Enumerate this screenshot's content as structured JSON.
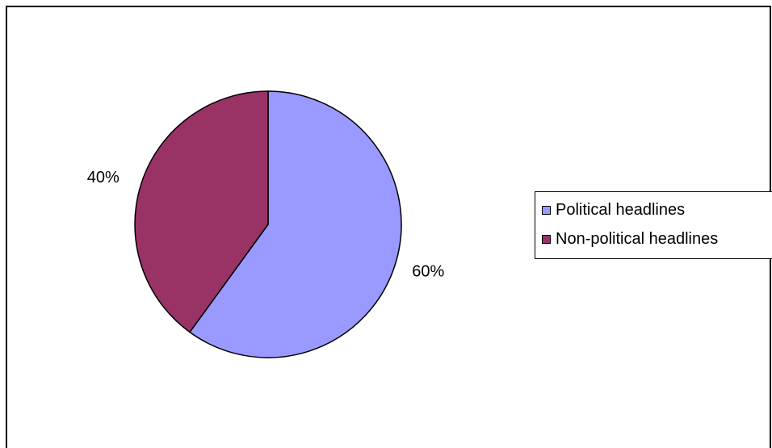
{
  "chart_data": {
    "type": "pie",
    "categories": [
      "Political headlines",
      "Non-political headlines"
    ],
    "values": [
      60,
      40
    ],
    "data_labels": [
      "60%",
      "40%"
    ],
    "colors": [
      "#9999FF",
      "#993366"
    ],
    "legend_position": "right",
    "start_angle": "12 o'clock",
    "direction": "clockwise"
  },
  "legend": {
    "items": [
      {
        "label": "Political headlines",
        "color": "#9999FF"
      },
      {
        "label": "Non-political headlines",
        "color": "#993366"
      }
    ]
  }
}
